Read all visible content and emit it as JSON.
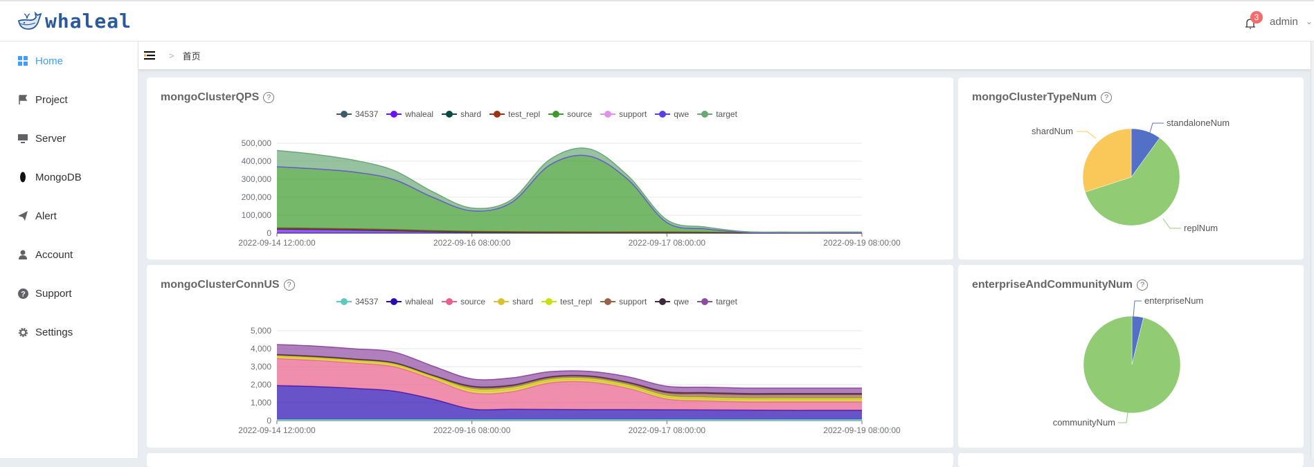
{
  "header": {
    "logo_text": "whaleal",
    "notification_count": "3",
    "user": "admin"
  },
  "sidebar": {
    "items": [
      {
        "label": "Home",
        "icon": "grid-icon"
      },
      {
        "label": "Project",
        "icon": "flag-icon"
      },
      {
        "label": "Server",
        "icon": "monitor-icon"
      },
      {
        "label": "MongoDB",
        "icon": "leaf-icon"
      },
      {
        "label": "Alert",
        "icon": "paper-plane-icon"
      },
      {
        "label": "Account",
        "icon": "user-icon"
      },
      {
        "label": "Support",
        "icon": "question-icon"
      },
      {
        "label": "Settings",
        "icon": "gear-icon"
      }
    ]
  },
  "breadcrumb": {
    "home": "首页"
  },
  "colors": {
    "accent": "#409eff",
    "badge": "#f56c6c"
  },
  "chart_data": [
    {
      "type": "area",
      "title": "mongoClusterQPS",
      "stacked": true,
      "x_labels": [
        "2022-09-14 12:00:00",
        "2022-09-16 08:00:00",
        "2022-09-17 08:00:00",
        "2022-09-19 08:00:00"
      ],
      "ylim": [
        0,
        500000
      ],
      "y_ticks": [
        "0",
        "100,000",
        "200,000",
        "300,000",
        "400,000",
        "500,000"
      ],
      "legend_position": "top-center",
      "series": [
        {
          "name": "34537",
          "color": "#3f5b68",
          "values": [
            500,
            500,
            500,
            500,
            500,
            500,
            500,
            500,
            500,
            500,
            500,
            500,
            500,
            500,
            500,
            500
          ]
        },
        {
          "name": "whaleal",
          "color": "#6a12f2",
          "values": [
            22000,
            20000,
            17000,
            13000,
            8000,
            4000,
            2000,
            1000,
            500,
            500,
            500,
            300,
            200,
            100,
            100,
            100
          ]
        },
        {
          "name": "shard",
          "color": "#0b4a40",
          "values": [
            500,
            500,
            500,
            500,
            500,
            500,
            500,
            500,
            500,
            500,
            500,
            500,
            500,
            500,
            500,
            500
          ]
        },
        {
          "name": "test_repl",
          "color": "#9a3412",
          "values": [
            6000,
            6000,
            6000,
            6000,
            5000,
            5000,
            5000,
            5000,
            5000,
            5000,
            5000,
            4000,
            2000,
            1000,
            1000,
            1000
          ]
        },
        {
          "name": "source",
          "color": "#3a9a2a",
          "values": [
            340000,
            330000,
            315000,
            278000,
            185000,
            114000,
            160000,
            372000,
            422000,
            292000,
            52000,
            18000,
            2000,
            1000,
            1000,
            1000
          ]
        },
        {
          "name": "support",
          "color": "#e291ea",
          "values": [
            0,
            0,
            0,
            0,
            0,
            0,
            0,
            0,
            0,
            0,
            0,
            0,
            0,
            0,
            0,
            0
          ]
        },
        {
          "name": "qwe",
          "color": "#5b3ee6",
          "values": [
            500,
            500,
            500,
            500,
            500,
            500,
            500,
            500,
            500,
            500,
            500,
            500,
            500,
            500,
            500,
            500
          ]
        },
        {
          "name": "target",
          "color": "#6aa878",
          "values": [
            90000,
            80000,
            65000,
            50000,
            30000,
            15000,
            15000,
            30000,
            40000,
            20000,
            15000,
            10000,
            3000,
            2500,
            2500,
            2500
          ]
        }
      ]
    },
    {
      "type": "area",
      "title": "mongoClusterConnUS",
      "stacked": true,
      "x_labels": [
        "2022-09-14 12:00:00",
        "2022-09-16 08:00:00",
        "2022-09-17 08:00:00",
        "2022-09-19 08:00:00"
      ],
      "ylim": [
        0,
        5000
      ],
      "y_ticks": [
        "0",
        "1,000",
        "2,000",
        "3,000",
        "4,000",
        "5,000"
      ],
      "legend_position": "top-center",
      "series": [
        {
          "name": "34537",
          "color": "#5ec8c0",
          "values": [
            80,
            80,
            80,
            80,
            80,
            80,
            80,
            80,
            80,
            80,
            80,
            80,
            80,
            80,
            80,
            80
          ]
        },
        {
          "name": "whaleal",
          "color": "#2a0ab0",
          "values": [
            1870,
            1820,
            1720,
            1570,
            1120,
            570,
            560,
            550,
            540,
            540,
            530,
            520,
            510,
            500,
            500,
            500
          ]
        },
        {
          "name": "source",
          "color": "#e8608a",
          "values": [
            1500,
            1450,
            1400,
            1350,
            1100,
            900,
            960,
            1470,
            1530,
            1180,
            590,
            500,
            460,
            470,
            470,
            470
          ]
        },
        {
          "name": "shard",
          "color": "#d8c030",
          "values": [
            120,
            120,
            120,
            120,
            120,
            150,
            150,
            120,
            120,
            120,
            120,
            120,
            120,
            120,
            120,
            120
          ]
        },
        {
          "name": "test_repl",
          "color": "#c8e010",
          "values": [
            50,
            50,
            50,
            50,
            50,
            80,
            80,
            80,
            80,
            80,
            80,
            80,
            80,
            80,
            80,
            80
          ]
        },
        {
          "name": "support",
          "color": "#9a6048",
          "values": [
            30,
            30,
            30,
            30,
            30,
            100,
            100,
            100,
            100,
            100,
            150,
            200,
            200,
            200,
            200,
            200
          ]
        },
        {
          "name": "qwe",
          "color": "#3e2a3a",
          "values": [
            30,
            30,
            30,
            30,
            30,
            40,
            40,
            40,
            40,
            40,
            60,
            60,
            60,
            60,
            60,
            60
          ]
        },
        {
          "name": "target",
          "color": "#8e4aa0",
          "values": [
            550,
            560,
            560,
            580,
            500,
            400,
            400,
            280,
            250,
            300,
            300,
            300,
            300,
            300,
            300,
            300
          ]
        }
      ]
    },
    {
      "type": "pie",
      "title": "mongoClusterTypeNum",
      "slices": [
        {
          "label": "standaloneNum",
          "value": 1,
          "color": "#5470c6"
        },
        {
          "label": "replNum",
          "value": 6,
          "color": "#91cc75"
        },
        {
          "label": "shardNum",
          "value": 3,
          "color": "#fac858"
        }
      ]
    },
    {
      "type": "pie",
      "title": "enterpriseAndCommunityNum",
      "slices": [
        {
          "label": "enterpriseNum",
          "value": 1,
          "color": "#5470c6"
        },
        {
          "label": "communityNum",
          "value": 25,
          "color": "#91cc75"
        }
      ]
    }
  ]
}
